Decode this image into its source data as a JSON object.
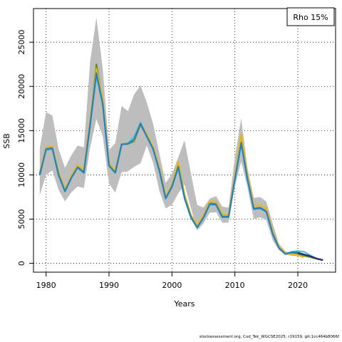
{
  "chart_data": {
    "type": "line",
    "xlabel": "Years",
    "ylabel": "SSB",
    "xlim": [
      1978,
      2026
    ],
    "ylim": [
      -1000,
      28800
    ],
    "xticks": [
      1980,
      1990,
      2000,
      2010,
      2020
    ],
    "yticks": [
      0,
      5000,
      10000,
      15000,
      20000,
      25000
    ],
    "grid": true,
    "legend": {
      "placement": "top-right",
      "label": "Rho 15%"
    },
    "band": {
      "x": [
        1979,
        1980,
        1981,
        1982,
        1983,
        1984,
        1985,
        1986,
        1987,
        1988,
        1989,
        1990,
        1991,
        1992,
        1993,
        1994,
        1995,
        1996,
        1997,
        1998,
        1999,
        2000,
        2001,
        2002,
        2003,
        2004,
        2005,
        2006,
        2007,
        2008,
        2009,
        2010,
        2011,
        2012,
        2013,
        2014,
        2015,
        2016,
        2017,
        2018,
        2019,
        2020
      ],
      "upper": [
        13000,
        17100,
        16700,
        12900,
        10800,
        12200,
        13300,
        13100,
        22800,
        27800,
        22000,
        12800,
        13600,
        17800,
        17200,
        19100,
        20100,
        18200,
        15800,
        12400,
        9100,
        10100,
        12000,
        13900,
        10200,
        6600,
        6300,
        7300,
        7600,
        6400,
        6300,
        12000,
        16400,
        10800,
        7400,
        7500,
        7000,
        4500,
        2200,
        1400,
        1100,
        900
      ],
      "lower": [
        7700,
        10000,
        10500,
        8300,
        7000,
        8000,
        8700,
        8500,
        13100,
        16300,
        14400,
        9000,
        8000,
        10300,
        10400,
        10900,
        11300,
        13300,
        11400,
        8200,
        6200,
        6600,
        7900,
        8900,
        6300,
        3700,
        4500,
        5700,
        5800,
        4600,
        4600,
        8700,
        11500,
        8600,
        5000,
        5200,
        4900,
        2600,
        1500,
        1000,
        850,
        800
      ]
    },
    "series": [
      {
        "color": "#5f8f1e",
        "x": [
          1979,
          1980,
          1981,
          1982,
          1983,
          1984,
          1985,
          1986,
          1987,
          1988,
          1989,
          1990,
          1991,
          1992,
          1993,
          1994,
          1995,
          1996,
          1997,
          1998,
          1999,
          2000,
          2001,
          2002,
          2003,
          2004,
          2005,
          2006,
          2007,
          2008,
          2009,
          2010,
          2011,
          2012,
          2013,
          2014,
          2015,
          2016,
          2017,
          2018,
          2019,
          2020,
          2021,
          2022,
          2023,
          2024
        ],
        "values": [
          10100,
          13000,
          13100,
          10100,
          8200,
          9700,
          10900,
          10300,
          15800,
          22500,
          18200,
          11100,
          10300,
          13500,
          13500,
          13800,
          15700,
          14400,
          13000,
          10600,
          7400,
          8700,
          11000,
          7500,
          5300,
          4100,
          5200,
          6800,
          6700,
          5300,
          5300,
          9600,
          13700,
          9600,
          6200,
          6300,
          5900,
          3400,
          1800,
          1100,
          1200,
          1100,
          850,
          700,
          500,
          350
        ]
      },
      {
        "color": "#e7b71a",
        "x": [
          1979,
          1980,
          1981,
          1982,
          1983,
          1984,
          1985,
          1986,
          1987,
          1988,
          1989,
          1990,
          1991,
          1992,
          1993,
          1994,
          1995,
          1996,
          1997,
          1998,
          1999,
          2000,
          2001,
          2002,
          2003,
          2004,
          2005,
          2006,
          2007,
          2008,
          2009,
          2010,
          2011,
          2012,
          2013,
          2014,
          2015,
          2016,
          2017,
          2018,
          2019,
          2020,
          2021
        ],
        "values": [
          10300,
          13100,
          13200,
          10300,
          8400,
          9900,
          11100,
          10600,
          16200,
          22000,
          18600,
          11300,
          10500,
          13500,
          13600,
          13900,
          15800,
          14600,
          13200,
          10800,
          7600,
          8900,
          11500,
          7800,
          5500,
          4300,
          5400,
          7000,
          7000,
          5500,
          5500,
          9900,
          14600,
          10000,
          6500,
          6600,
          6200,
          3600,
          1900,
          1200,
          1000,
          900,
          700
        ]
      },
      {
        "color": "#48c4d4",
        "x": [
          1979,
          1980,
          1981,
          1982,
          1983,
          1984,
          1985,
          1986,
          1987,
          1988,
          1989,
          1990,
          1991,
          1992,
          1993,
          1994,
          1995,
          1996,
          1997,
          1998,
          1999,
          2000,
          2001,
          2002,
          2003,
          2004,
          2005,
          2006,
          2007,
          2008,
          2009,
          2010,
          2011,
          2012,
          2013,
          2014,
          2015,
          2016,
          2017,
          2018,
          2019,
          2020,
          2021,
          2022,
          2023
        ],
        "values": [
          10000,
          12800,
          12900,
          9900,
          8100,
          9600,
          10800,
          10200,
          15600,
          21200,
          17900,
          11000,
          10200,
          13400,
          13600,
          14300,
          15900,
          14300,
          12900,
          10400,
          7300,
          8600,
          10800,
          7300,
          5200,
          4000,
          5100,
          6600,
          6600,
          5200,
          5200,
          9400,
          13500,
          9500,
          6100,
          6200,
          5800,
          3300,
          1700,
          1050,
          1300,
          1400,
          1300,
          900,
          500
        ]
      },
      {
        "color": "#2b7fb8",
        "x": [
          1979,
          1980,
          1981,
          1982,
          1983,
          1984,
          1985,
          1986,
          1987,
          1988,
          1989,
          1990,
          1991,
          1992,
          1993,
          1994,
          1995,
          1996,
          1997,
          1998,
          1999,
          2000,
          2001,
          2002,
          2003,
          2004,
          2005,
          2006,
          2007,
          2008,
          2009,
          2010,
          2011,
          2012,
          2013,
          2014,
          2015,
          2016,
          2017,
          2018,
          2019,
          2020,
          2021,
          2022
        ],
        "values": [
          10000,
          12900,
          13000,
          10000,
          8150,
          9650,
          10850,
          10250,
          15700,
          21500,
          18000,
          11050,
          10250,
          13450,
          13500,
          14000,
          15800,
          14350,
          12950,
          10500,
          7350,
          8650,
          10900,
          7400,
          5250,
          4050,
          5150,
          6700,
          6650,
          5250,
          5250,
          9500,
          13600,
          9550,
          6150,
          6250,
          5850,
          3350,
          1750,
          1050,
          1250,
          1250,
          1000,
          800
        ]
      },
      {
        "color": "#2a2a7a",
        "x": [
          2020,
          2021,
          2022,
          2023,
          2024
        ],
        "values": [
          1150,
          1000,
          800,
          550,
          380
        ]
      }
    ]
  },
  "footnote": "stockassessment.org, Cod_Tek_WGCSE2025, r19159, git:1cc464b8066f"
}
